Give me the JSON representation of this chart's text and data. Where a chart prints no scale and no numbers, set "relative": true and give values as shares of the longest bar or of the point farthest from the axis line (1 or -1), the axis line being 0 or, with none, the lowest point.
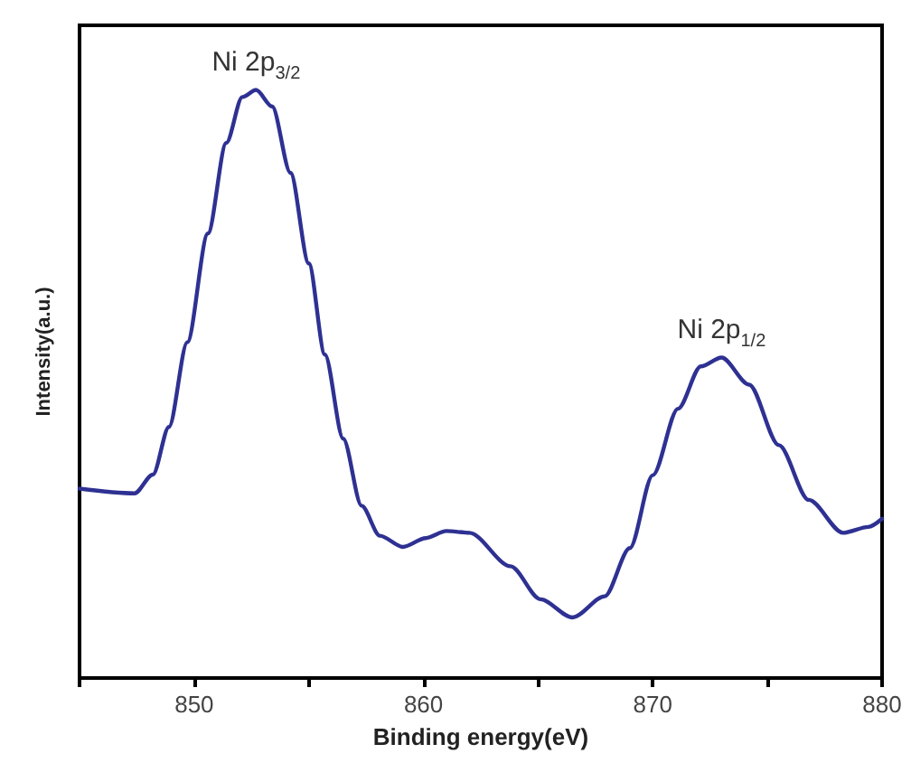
{
  "chart_data": {
    "type": "line",
    "relative": true,
    "xlabel": "Binding energy(eV)",
    "ylabel": "Intensity(a.u.)",
    "xlim": [
      845,
      880
    ],
    "xticks": [
      {
        "value": 845,
        "label": null
      },
      850,
      {
        "value": 855,
        "label": null
      },
      860,
      {
        "value": 865,
        "label": null
      },
      870,
      {
        "value": 875,
        "label": null
      },
      880
    ],
    "x": [
      845.0,
      847.4,
      848.2,
      848.9,
      849.7,
      850.6,
      851.4,
      852.1,
      852.7,
      853.4,
      854.2,
      855.0,
      855.7,
      856.5,
      857.3,
      858.1,
      859.1,
      860.1,
      861.0,
      862.0,
      863.8,
      865.1,
      866.5,
      867.9,
      869.0,
      870.0,
      871.1,
      872.1,
      873.0,
      874.2,
      875.5,
      876.8,
      878.3,
      879.4,
      880.0
    ],
    "series": [
      {
        "color": "#2e3192",
        "values": [
          0.322,
          0.314,
          0.346,
          0.427,
          0.571,
          0.756,
          0.91,
          0.988,
          1.0,
          0.972,
          0.859,
          0.705,
          0.55,
          0.407,
          0.293,
          0.242,
          0.223,
          0.238,
          0.25,
          0.247,
          0.19,
          0.134,
          0.103,
          0.139,
          0.221,
          0.345,
          0.458,
          0.53,
          0.545,
          0.499,
          0.396,
          0.303,
          0.247,
          0.257,
          0.271
        ]
      }
    ],
    "annotations": [
      {
        "text": "Ni 2p$_{3/2}$",
        "x": 852.7,
        "y": 1.0
      },
      {
        "text": "Ni 2p$_{1/2}$",
        "x": 873.0,
        "y": 0.545
      }
    ],
    "grid": false,
    "marker": "none",
    "line_style": "solid"
  }
}
